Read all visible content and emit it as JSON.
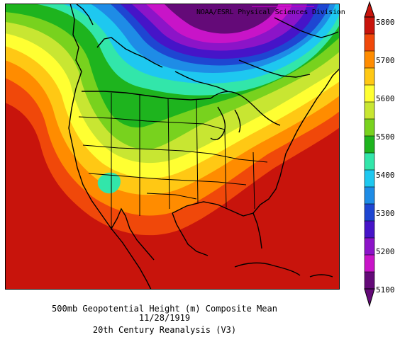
{
  "credit": "NOAA/ESRL Physical Sciences Division",
  "caption": {
    "line1": "500mb Geopotential Height (m) Composite Mean",
    "line2": "11/28/1919",
    "line3": "20th Century Reanalysis (V3)"
  },
  "colorbar": {
    "labels": [
      "5800",
      "5700",
      "5600",
      "5500",
      "5400",
      "5300",
      "5200",
      "5100"
    ],
    "colors": [
      "#c8140c",
      "#f0480a",
      "#ff8c00",
      "#ffc814",
      "#ffff32",
      "#c8e632",
      "#78d21e",
      "#1eb41e",
      "#32e6aa",
      "#1ec8f0",
      "#1e8ce6",
      "#1e46d2",
      "#4614c8",
      "#8c14c8",
      "#c814c8",
      "#640a78"
    ]
  },
  "map": {
    "field": "500mb Geopotential Height",
    "units": "m",
    "region": "North America",
    "min_contour": 5100,
    "max_contour": 5800,
    "interval": 50
  }
}
